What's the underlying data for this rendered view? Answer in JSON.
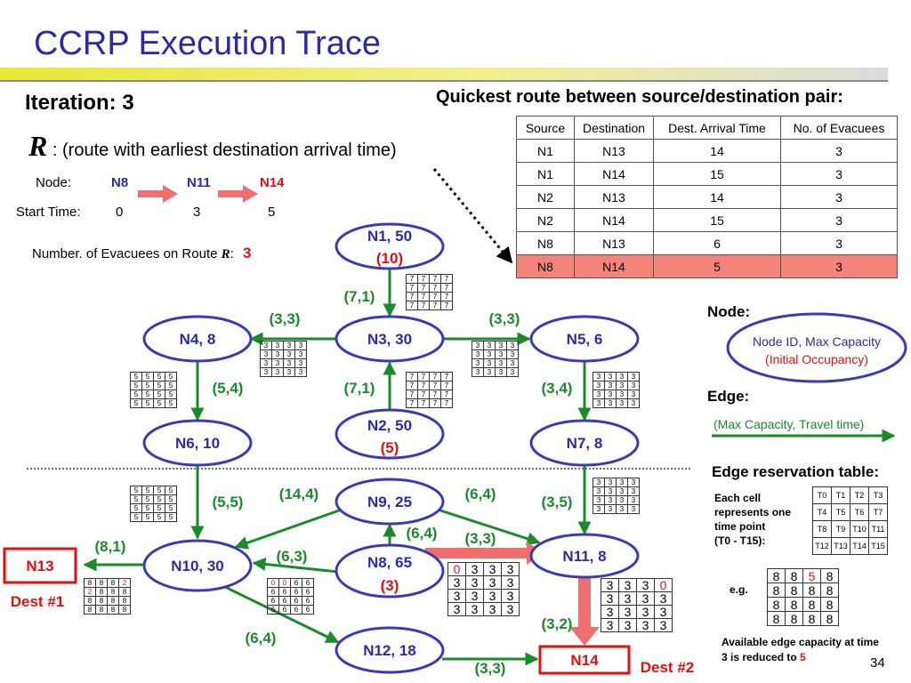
{
  "title": "CCRP Execution Trace",
  "iteration": "Iteration: 3",
  "quickest_title": "Quickest route between source/destination pair:",
  "r_symbol": "R",
  "r_colon": " : ",
  "r_desc": "(route with earliest destination arrival time)",
  "route": {
    "node_label": "Node:",
    "start_label": "Start Time:",
    "nodes": [
      "N8",
      "N11",
      "N14"
    ],
    "times": [
      "0",
      "3",
      "5"
    ],
    "evac_label": "Number. of Evacuees on Route ",
    "evac_r": "R",
    "evac_colon": ":",
    "evac_value": "3"
  },
  "route_table": {
    "headers": [
      "Source",
      "Destination",
      "Dest. Arrival Time",
      "No. of Evacuees"
    ],
    "rows": [
      [
        "N1",
        "N13",
        "14",
        "3"
      ],
      [
        "N1",
        "N14",
        "15",
        "3"
      ],
      [
        "N2",
        "N13",
        "14",
        "3"
      ],
      [
        "N2",
        "N14",
        "15",
        "3"
      ],
      [
        "N8",
        "N13",
        "6",
        "3"
      ],
      [
        "N8",
        "N14",
        "5",
        "3"
      ]
    ],
    "highlight_row": 5
  },
  "nodes": {
    "N1": {
      "label": "N1, 50",
      "occ": "(10)"
    },
    "N2": {
      "label": "N2, 50",
      "occ": "(5)"
    },
    "N3": {
      "label": "N3, 30"
    },
    "N4": {
      "label": "N4, 8"
    },
    "N5": {
      "label": "N5, 6"
    },
    "N6": {
      "label": "N6, 10"
    },
    "N7": {
      "label": "N7, 8"
    },
    "N8": {
      "label": "N8, 65",
      "occ": "(3)"
    },
    "N9": {
      "label": "N9, 25"
    },
    "N10": {
      "label": "N10, 30"
    },
    "N11": {
      "label": "N11, 8"
    },
    "N12": {
      "label": "N12, 18"
    },
    "N13": {
      "label": "N13",
      "dest": "Dest #1"
    },
    "N14": {
      "label": "N14",
      "dest": "Dest #2"
    }
  },
  "edges": {
    "N1_N3": "(7,1)",
    "N2_N3": "(7,1)",
    "N3_N4": "(3,3)",
    "N3_N5": "(3,3)",
    "N4_N6": "(5,4)",
    "N5_N7": "(3,4)",
    "N9_N10": "(14,4)",
    "N9_N11": "(6,4)",
    "N8_N9": "(6,4)",
    "N8_N11": "(3,3)",
    "N8_N10": "(6,3)",
    "N6_N10": "(5,5)",
    "N7_N11": "(3,5)",
    "N10_N13": "(8,1)",
    "N10_N12": "(6,4)",
    "N11_N14": "(3,2)",
    "N12_N14": "(3,3)"
  },
  "grids": {
    "g7a": [
      [
        "7",
        "7",
        "7",
        "7"
      ],
      [
        "7",
        "7",
        "7",
        "7"
      ],
      [
        "7",
        "7",
        "7",
        "7"
      ],
      [
        "7",
        "7",
        "7",
        "7"
      ]
    ],
    "g7b": [
      [
        "7",
        "7",
        "7",
        "7"
      ],
      [
        "7",
        "7",
        "7",
        "7"
      ],
      [
        "7",
        "7",
        "7",
        "7"
      ],
      [
        "7",
        "7",
        "7",
        "7"
      ]
    ],
    "g3a": [
      [
        "3",
        "3",
        "3",
        "3"
      ],
      [
        "3",
        "3",
        "3",
        "3"
      ],
      [
        "3",
        "3",
        "3",
        "3"
      ],
      [
        "3",
        "3",
        "3",
        "3"
      ]
    ],
    "g3b": [
      [
        "3",
        "3",
        "3",
        "3"
      ],
      [
        "3",
        "3",
        "3",
        "3"
      ],
      [
        "3",
        "3",
        "3",
        "3"
      ],
      [
        "3",
        "3",
        "3",
        "3"
      ]
    ],
    "g5a": [
      [
        "5",
        "5",
        "5",
        "5"
      ],
      [
        "5",
        "5",
        "5",
        "5"
      ],
      [
        "5",
        "5",
        "5",
        "5"
      ],
      [
        "5",
        "5",
        "5",
        "5"
      ]
    ],
    "g3c": [
      [
        "3",
        "3",
        "3",
        "3"
      ],
      [
        "3",
        "3",
        "3",
        "3"
      ],
      [
        "3",
        "3",
        "3",
        "3"
      ],
      [
        "3",
        "3",
        "3",
        "3"
      ]
    ],
    "g5b": [
      [
        "5",
        "5",
        "5",
        "5"
      ],
      [
        "5",
        "5",
        "5",
        "5"
      ],
      [
        "5",
        "5",
        "5",
        "5"
      ],
      [
        "5",
        "5",
        "5",
        "5"
      ]
    ],
    "g3d": [
      [
        "3",
        "3",
        "3",
        "3"
      ],
      [
        "3",
        "3",
        "3",
        "3"
      ],
      [
        "3",
        "3",
        "3",
        "3"
      ],
      [
        "3",
        "3",
        "3",
        "3"
      ]
    ],
    "g8": [
      [
        "8",
        "8",
        "8",
        "2"
      ],
      [
        "2",
        "8",
        "8",
        "8"
      ],
      [
        "8",
        "8",
        "8",
        "8"
      ],
      [
        "8",
        "8",
        "8",
        "8"
      ]
    ],
    "g6": [
      [
        "0",
        "0",
        "6",
        "6"
      ],
      [
        "6",
        "6",
        "6",
        "6"
      ],
      [
        "6",
        "6",
        "6",
        "6"
      ],
      [
        "6",
        "6",
        "6",
        "6"
      ]
    ],
    "g3e": [
      [
        "0",
        "3",
        "3",
        "3"
      ],
      [
        "3",
        "3",
        "3",
        "3"
      ],
      [
        "3",
        "3",
        "3",
        "3"
      ],
      [
        "3",
        "3",
        "3",
        "3"
      ]
    ],
    "g3f": [
      [
        "3",
        "3",
        "3",
        "0"
      ],
      [
        "3",
        "3",
        "3",
        "3"
      ],
      [
        "3",
        "3",
        "3",
        "3"
      ],
      [
        "3",
        "3",
        "3",
        "3"
      ]
    ]
  },
  "legend": {
    "node_title": "Node:",
    "node_line1": "Node ID,  Max Capacity",
    "node_line2": "(Initial Occupancy)",
    "edge_title": "Edge:",
    "edge_text": "(Max Capacity, Travel time)",
    "ert_title": "Edge reservation table:",
    "each_cell": [
      "Each cell",
      "represents one",
      "time point",
      "(T0 - T15):"
    ],
    "ref": [
      [
        "T0",
        "T1",
        "T2",
        "T3"
      ],
      [
        "T4",
        "T5",
        "T6",
        "T7"
      ],
      [
        "T8",
        "T9",
        "T10",
        "T11"
      ],
      [
        "T12",
        "T13",
        "T14",
        "T15"
      ]
    ],
    "eg_label": "e.g.",
    "eg": [
      [
        "8",
        "8",
        "5",
        "8"
      ],
      [
        "8",
        "8",
        "8",
        "8"
      ],
      [
        "8",
        "8",
        "8",
        "8"
      ],
      [
        "8",
        "8",
        "8",
        "8"
      ]
    ],
    "avail_line1": "Available edge capacity at time",
    "avail_line2": "3 is reduced to ",
    "avail_value": "5"
  },
  "page_number": "34",
  "colors": {
    "node_border": "#3a3ab8",
    "edge": "#1a8a2a",
    "route_arrow": "#f07070",
    "dest": "#e01010"
  }
}
